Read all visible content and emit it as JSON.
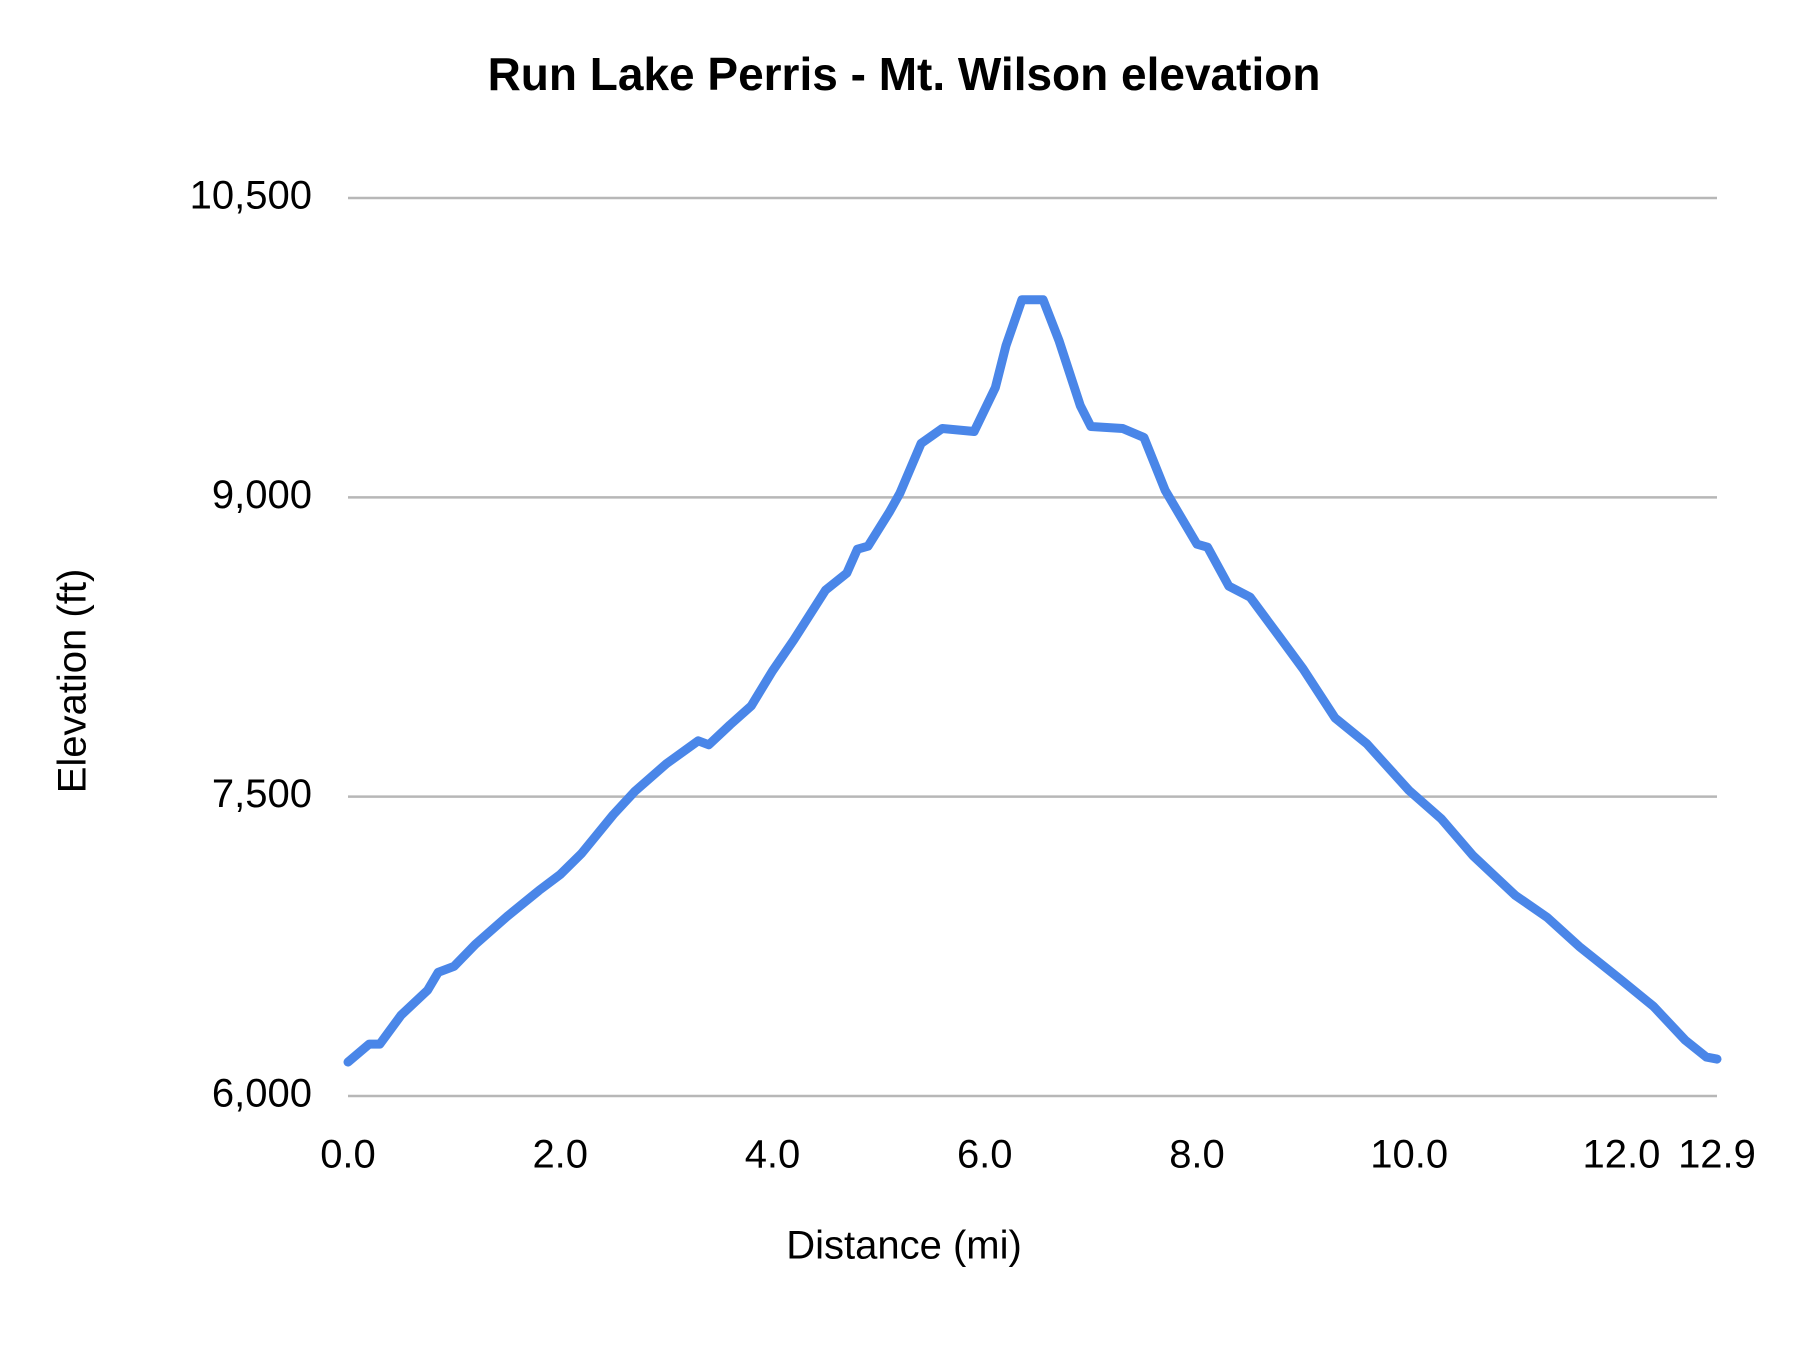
{
  "chart_data": {
    "type": "line",
    "title": "Run Lake Perris - Mt. Wilson elevation",
    "x_label": "Distance (mi)",
    "y_label": "Elevation (ft)",
    "x": [
      0,
      0.2,
      0.3,
      0.5,
      0.75,
      0.85,
      1.0,
      1.2,
      1.5,
      1.8,
      2.0,
      2.2,
      2.5,
      2.7,
      3.0,
      3.3,
      3.4,
      3.6,
      3.8,
      4.0,
      4.2,
      4.5,
      4.7,
      4.8,
      4.9,
      5.1,
      5.2,
      5.4,
      5.6,
      5.9,
      6.1,
      6.2,
      6.35,
      6.55,
      6.7,
      6.9,
      7.0,
      7.3,
      7.5,
      7.7,
      8.0,
      8.1,
      8.3,
      8.5,
      8.8,
      9.0,
      9.3,
      9.6,
      10.0,
      10.3,
      10.6,
      11.0,
      11.3,
      11.6,
      12.0,
      12.3,
      12.6,
      12.8,
      12.9
    ],
    "series": [
      {
        "name": "Elevation (ft)",
        "color": "#4a86e8",
        "values": [
          6170,
          6260,
          6260,
          6405,
          6530,
          6620,
          6650,
          6760,
          6900,
          7030,
          7110,
          7215,
          7410,
          7525,
          7665,
          7780,
          7760,
          7860,
          7955,
          8130,
          8285,
          8535,
          8620,
          8740,
          8755,
          8925,
          9020,
          9270,
          9345,
          9330,
          9550,
          9760,
          9990,
          9990,
          9785,
          9460,
          9355,
          9345,
          9300,
          9035,
          8765,
          8750,
          8555,
          8500,
          8285,
          8140,
          7895,
          7765,
          7530,
          7390,
          7205,
          7005,
          6895,
          6750,
          6580,
          6450,
          6280,
          6195,
          6185
        ]
      }
    ],
    "xlim": [
      0,
      12.9
    ],
    "xticks": [
      {
        "value": 0,
        "label": "0.0"
      },
      {
        "value": 2,
        "label": "2.0"
      },
      {
        "value": 4,
        "label": "4.0"
      },
      {
        "value": 6,
        "label": "6.0"
      },
      {
        "value": 8,
        "label": "8.0"
      },
      {
        "value": 10,
        "label": "10.0"
      },
      {
        "value": 12,
        "label": "12.0"
      },
      {
        "value": 12.9,
        "label": "12.9"
      }
    ],
    "ylim": [
      6000,
      10500
    ],
    "yticks": [
      {
        "value": 6000,
        "label": "6,000"
      },
      {
        "value": 7500,
        "label": "7,500"
      },
      {
        "value": 9000,
        "label": "9,000"
      },
      {
        "value": 10500,
        "label": "10,500"
      }
    ],
    "grid": true
  }
}
